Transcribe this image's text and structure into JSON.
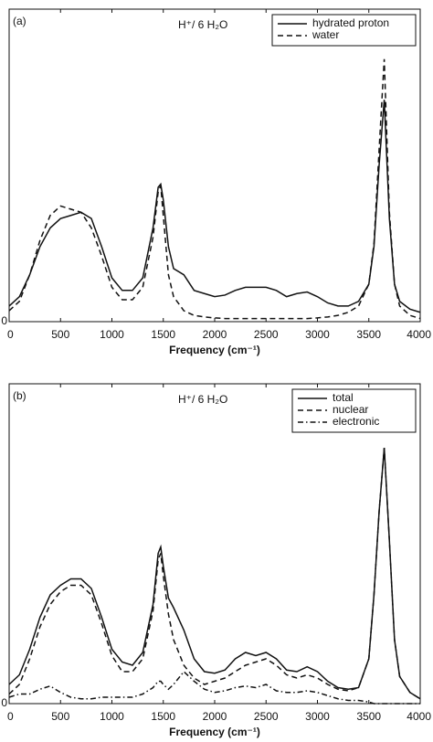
{
  "chart_data": [
    {
      "type": "line",
      "label": "(a)",
      "annotation": "H⁺/ 6 H₂O",
      "xlabel": "Frequency (cm⁻¹)",
      "xlim": [
        0,
        4000
      ],
      "xticks": [
        0,
        500,
        1000,
        1500,
        2000,
        2500,
        3000,
        3500,
        4000
      ],
      "ylim": [
        0,
        1
      ],
      "yticks": [
        0
      ],
      "legend": "upper right",
      "x": [
        0,
        100,
        200,
        300,
        400,
        500,
        600,
        700,
        800,
        900,
        1000,
        1100,
        1200,
        1300,
        1400,
        1450,
        1475,
        1500,
        1550,
        1600,
        1700,
        1800,
        1900,
        2000,
        2100,
        2200,
        2300,
        2400,
        2500,
        2600,
        2700,
        2800,
        2900,
        3000,
        3100,
        3200,
        3300,
        3400,
        3500,
        3550,
        3600,
        3650,
        3700,
        3750,
        3800,
        3900,
        4000
      ],
      "series": [
        {
          "name": "hydrated proton",
          "color": "#111111",
          "style": "solid",
          "values": [
            0.05,
            0.08,
            0.15,
            0.24,
            0.3,
            0.33,
            0.34,
            0.35,
            0.33,
            0.24,
            0.14,
            0.1,
            0.1,
            0.14,
            0.3,
            0.43,
            0.44,
            0.39,
            0.24,
            0.17,
            0.15,
            0.1,
            0.09,
            0.08,
            0.085,
            0.1,
            0.11,
            0.11,
            0.11,
            0.1,
            0.08,
            0.09,
            0.095,
            0.08,
            0.06,
            0.05,
            0.05,
            0.065,
            0.12,
            0.24,
            0.5,
            0.71,
            0.33,
            0.12,
            0.065,
            0.04,
            0.03
          ]
        },
        {
          "name": "water",
          "color": "#111111",
          "style": "dashed",
          "values": [
            0.035,
            0.065,
            0.15,
            0.26,
            0.34,
            0.37,
            0.36,
            0.35,
            0.3,
            0.21,
            0.11,
            0.07,
            0.07,
            0.11,
            0.27,
            0.415,
            0.435,
            0.34,
            0.15,
            0.08,
            0.035,
            0.02,
            0.015,
            0.012,
            0.01,
            0.01,
            0.01,
            0.01,
            0.01,
            0.01,
            0.01,
            0.01,
            0.01,
            0.012,
            0.015,
            0.02,
            0.03,
            0.05,
            0.12,
            0.25,
            0.55,
            0.84,
            0.35,
            0.12,
            0.05,
            0.02,
            0.01
          ]
        }
      ]
    },
    {
      "type": "line",
      "label": "(b)",
      "annotation": "H⁺/ 6 H₂O",
      "xlabel": "Frequency (cm⁻¹)",
      "xlim": [
        0,
        4000
      ],
      "xticks": [
        0,
        500,
        1000,
        1500,
        2000,
        2500,
        3000,
        3500,
        4000
      ],
      "ylim": [
        0,
        1
      ],
      "yticks": [
        0
      ],
      "legend": "upper right",
      "x": [
        0,
        100,
        200,
        300,
        400,
        500,
        600,
        700,
        800,
        900,
        1000,
        1100,
        1200,
        1300,
        1400,
        1450,
        1475,
        1500,
        1550,
        1600,
        1700,
        1800,
        1900,
        2000,
        2100,
        2200,
        2300,
        2400,
        2500,
        2600,
        2700,
        2800,
        2900,
        3000,
        3100,
        3200,
        3300,
        3400,
        3500,
        3550,
        3600,
        3650,
        3700,
        3750,
        3800,
        3900,
        4000
      ],
      "series": [
        {
          "name": "total",
          "color": "#111111",
          "style": "solid",
          "values": [
            0.06,
            0.09,
            0.17,
            0.27,
            0.34,
            0.37,
            0.39,
            0.39,
            0.36,
            0.27,
            0.17,
            0.13,
            0.12,
            0.16,
            0.31,
            0.47,
            0.49,
            0.43,
            0.33,
            0.3,
            0.23,
            0.14,
            0.1,
            0.095,
            0.105,
            0.14,
            0.16,
            0.15,
            0.16,
            0.14,
            0.105,
            0.1,
            0.115,
            0.1,
            0.07,
            0.05,
            0.045,
            0.05,
            0.14,
            0.34,
            0.6,
            0.8,
            0.51,
            0.2,
            0.085,
            0.035,
            0.015
          ]
        },
        {
          "name": "nuclear",
          "color": "#111111",
          "style": "dashed",
          "values": [
            0.03,
            0.06,
            0.14,
            0.24,
            0.31,
            0.35,
            0.37,
            0.37,
            0.34,
            0.25,
            0.15,
            0.1,
            0.1,
            0.14,
            0.29,
            0.45,
            0.47,
            0.4,
            0.28,
            0.2,
            0.12,
            0.08,
            0.06,
            0.07,
            0.08,
            0.1,
            0.12,
            0.13,
            0.14,
            0.12,
            0.09,
            0.08,
            0.09,
            0.08,
            0.06,
            0.045,
            0.04,
            0.05,
            0.14,
            0.34,
            0.6,
            0.8,
            0.51,
            0.2,
            0.085,
            0.035,
            0.015
          ]
        },
        {
          "name": "electronic",
          "color": "#111111",
          "style": "dashdot",
          "values": [
            0.02,
            0.03,
            0.03,
            0.045,
            0.055,
            0.035,
            0.02,
            0.015,
            0.015,
            0.02,
            0.02,
            0.02,
            0.02,
            0.03,
            0.05,
            0.07,
            0.07,
            0.06,
            0.045,
            0.06,
            0.1,
            0.07,
            0.045,
            0.035,
            0.04,
            0.05,
            0.055,
            0.05,
            0.06,
            0.04,
            0.035,
            0.035,
            0.04,
            0.035,
            0.025,
            0.015,
            0.01,
            0.01,
            0.005,
            0,
            0,
            0,
            0,
            0,
            0,
            0,
            0
          ]
        }
      ]
    }
  ]
}
